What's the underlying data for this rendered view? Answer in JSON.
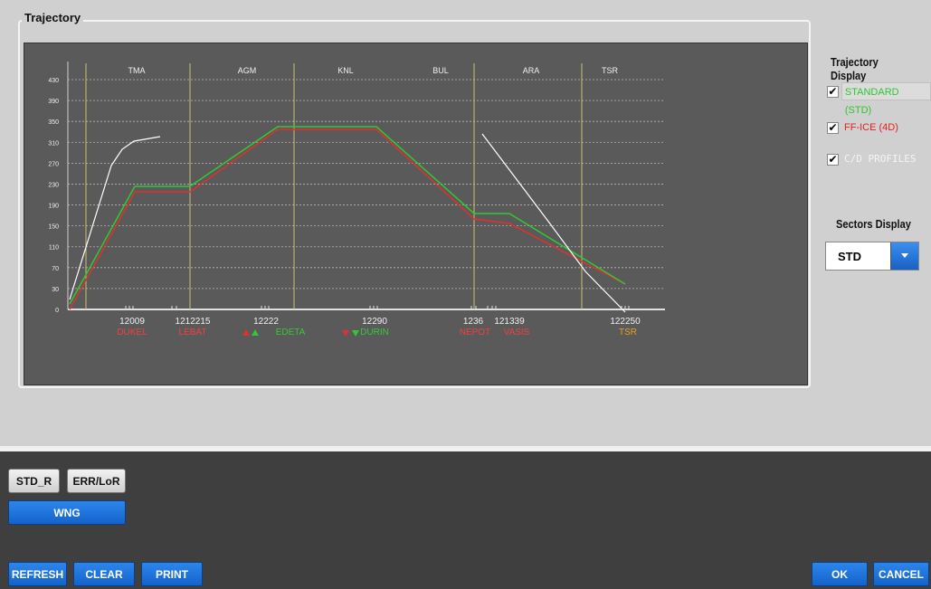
{
  "window": {
    "group_title": "Trajectory"
  },
  "chart_data": {
    "type": "line",
    "y_ticks": [
      "430",
      "390",
      "350",
      "310",
      "270",
      "230",
      "190",
      "150",
      "110",
      "70",
      "30",
      "0"
    ],
    "sectors": [
      "TMA",
      "AGM",
      "KNL",
      "BUL",
      "ARA",
      "TSR"
    ],
    "time_labels": [
      "12009",
      "1212215",
      "12222",
      "12290",
      "1236",
      "121339",
      "122250"
    ],
    "waypoints": [
      {
        "text": "DUKEL",
        "color": "#f04040"
      },
      {
        "text": "LEBAT",
        "color": "#f04040"
      },
      {
        "text": "EDETA",
        "color": "#35c935"
      },
      {
        "text": "DURIN",
        "color": "#35c935"
      },
      {
        "text": "NEPOT",
        "color": "#f04040"
      },
      {
        "text": "VASIS",
        "color": "#f04040"
      },
      {
        "text": "TSR",
        "color": "#e8a020"
      }
    ],
    "series": [
      {
        "name": "STANDARD (STD)",
        "color": "#32c832"
      },
      {
        "name": "FF-ICE (4D)",
        "color": "#e03030"
      },
      {
        "name": "C/D PROFILES",
        "color": "#ffffff"
      }
    ]
  },
  "trajectory_display": {
    "title": "Trajectory Display",
    "options": [
      {
        "label": "STANDARD (STD)",
        "color": "#2ec62e",
        "checked": true
      },
      {
        "label": "FF-ICE (4D)",
        "color": "#e02020",
        "checked": true
      },
      {
        "label": "C/D PROFILES",
        "color": "#f4f4f4",
        "checked": true
      }
    ],
    "check_mark": "✔"
  },
  "sectors_display": {
    "title": "Sectors Display",
    "value": "STD"
  },
  "buttons": {
    "std_r": "STD_R",
    "err_lor": "ERR/LoR",
    "wng": "WNG",
    "refresh": "REFRESH",
    "clear": "CLEAR",
    "print": "PRINT",
    "ok": "OK",
    "cancel": "CANCEL"
  }
}
